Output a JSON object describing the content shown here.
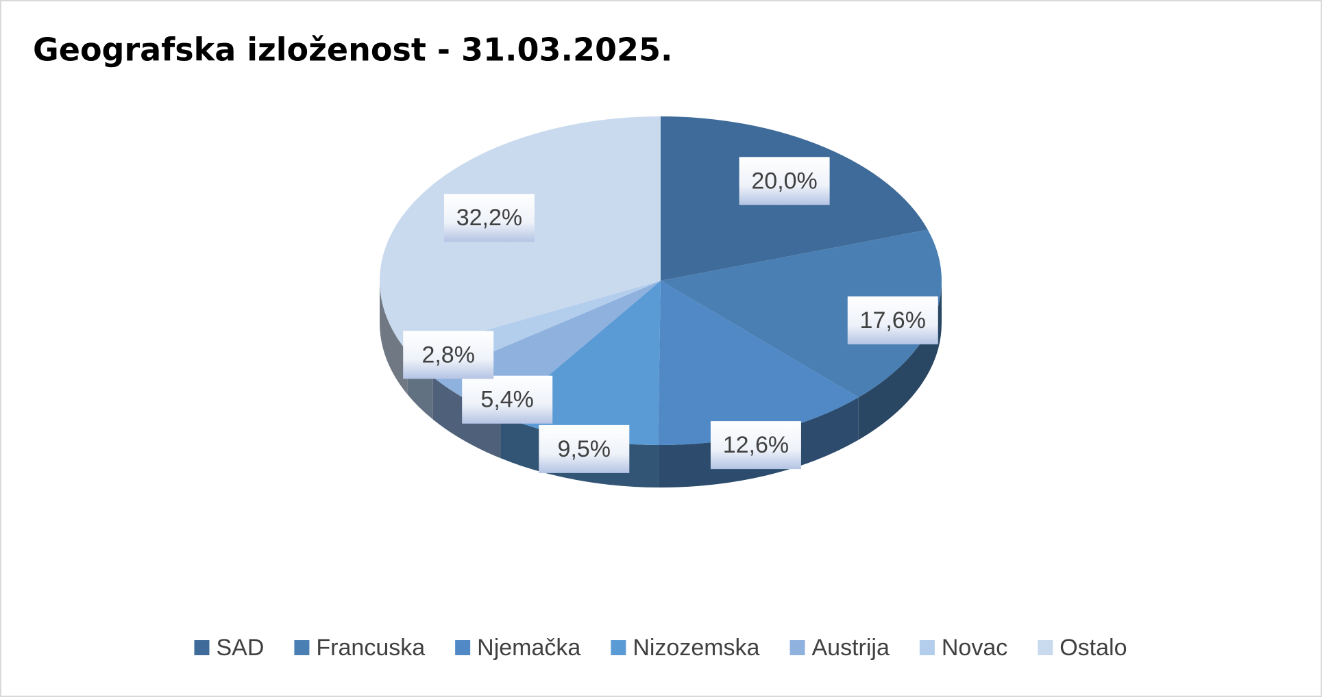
{
  "chart_data": {
    "type": "pie",
    "title": "Geografska izloženost - 31.03.2025.",
    "categories": [
      "SAD",
      "Francuska",
      "Njemačka",
      "Nizozemska",
      "Austrija",
      "Novac",
      "Ostalo"
    ],
    "values": [
      20.0,
      17.6,
      12.6,
      9.5,
      5.4,
      2.8,
      32.2
    ],
    "value_labels": [
      "20,0%",
      "17,6%",
      "12,6%",
      "9,5%",
      "5,4%",
      "2,8%",
      "32,2%"
    ],
    "colors": [
      "#3e6b99",
      "#4a7fb3",
      "#5089c6",
      "#5b9bd5",
      "#8fb1de",
      "#b3cdec",
      "#c9daee"
    ],
    "legend": "bottom"
  }
}
